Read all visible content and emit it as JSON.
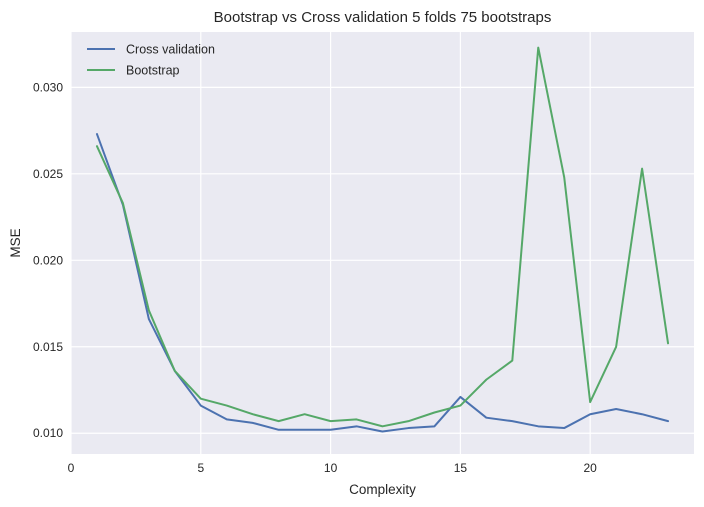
{
  "chart_data": {
    "type": "line",
    "title": "Bootstrap vs Cross validation 5 folds 75 bootstraps",
    "xlabel": "Complexity",
    "ylabel": "MSE",
    "x": [
      1,
      2,
      3,
      4,
      5,
      6,
      7,
      8,
      9,
      10,
      11,
      12,
      13,
      14,
      15,
      16,
      17,
      18,
      19,
      20,
      21,
      22,
      23
    ],
    "xlim": [
      0,
      24
    ],
    "ylim": [
      0.0088,
      0.0332
    ],
    "xticks": [
      0,
      5,
      10,
      15,
      20
    ],
    "yticks": [
      0.01,
      0.015,
      0.02,
      0.025,
      0.03
    ],
    "xtick_labels": [
      "0",
      "5",
      "10",
      "15",
      "20"
    ],
    "ytick_labels": [
      "0.010",
      "0.015",
      "0.020",
      "0.025",
      "0.030"
    ],
    "grid": true,
    "legend_position": "top-left",
    "background_color": "#eaeaf2",
    "grid_color": "#ffffff",
    "series": [
      {
        "name": "Cross validation",
        "color": "#4c72b0",
        "values": [
          0.0273,
          0.0232,
          0.0166,
          0.0136,
          0.0116,
          0.0108,
          0.0106,
          0.0102,
          0.0102,
          0.0102,
          0.0104,
          0.0101,
          0.0103,
          0.0104,
          0.0121,
          0.0109,
          0.0107,
          0.0104,
          0.0103,
          0.0111,
          0.0114,
          0.0111,
          0.0107
        ]
      },
      {
        "name": "Bootstrap",
        "color": "#55a868",
        "values": [
          0.0266,
          0.0233,
          0.0171,
          0.0136,
          0.012,
          0.0116,
          0.0111,
          0.0107,
          0.0111,
          0.0107,
          0.0108,
          0.0104,
          0.0107,
          0.0112,
          0.0116,
          0.0131,
          0.0142,
          0.0323,
          0.0248,
          0.0118,
          0.015,
          0.0253,
          0.0152
        ]
      }
    ]
  }
}
